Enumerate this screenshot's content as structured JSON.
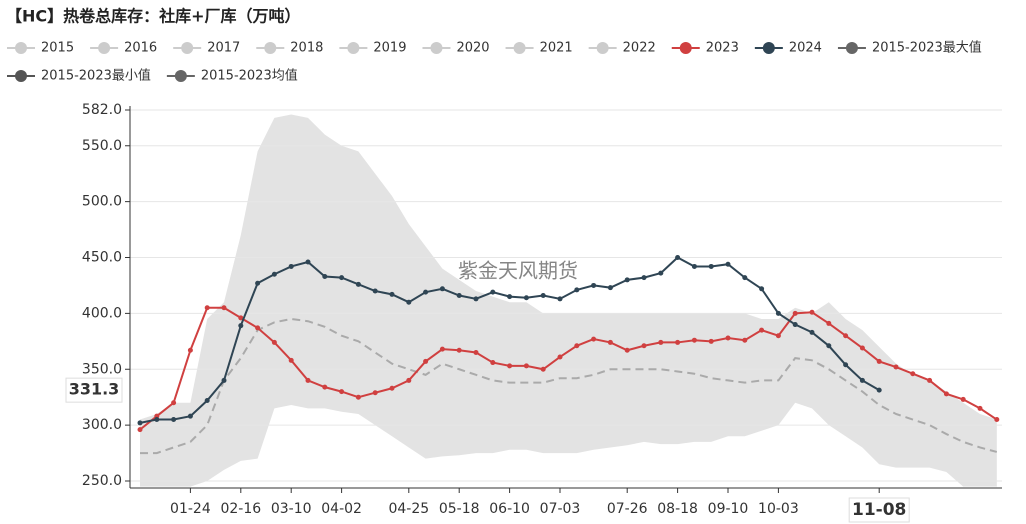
{
  "chart_data": {
    "type": "line",
    "title": "【HC】热卷总库存：社库+厂库（万吨）",
    "watermark": "紫金天风期货",
    "hidden_series": [
      "2015",
      "2016",
      "2017",
      "2018",
      "2019",
      "2020",
      "2021",
      "2022"
    ],
    "hidden_color": "#cccccc",
    "categories": [
      null,
      null,
      null,
      "01-24",
      null,
      null,
      "02-16",
      null,
      null,
      "03-10",
      null,
      null,
      "04-02",
      null,
      null,
      null,
      "04-25",
      null,
      null,
      "05-18",
      null,
      null,
      "06-10",
      null,
      null,
      "07-03",
      null,
      null,
      null,
      "07-26",
      null,
      null,
      "08-18",
      null,
      null,
      "09-10",
      null,
      null,
      "10-03",
      null,
      null,
      null,
      null,
      null,
      "11-08",
      null,
      null,
      null,
      null,
      null,
      null,
      null
    ],
    "series": [
      {
        "name": "2023",
        "color": "#d04040",
        "kind": "line",
        "values": [
          296,
          308,
          320,
          367,
          405,
          405,
          396,
          387,
          374,
          358,
          340,
          334,
          330,
          325,
          329,
          333,
          340,
          357,
          368,
          367,
          365,
          356,
          353,
          353,
          350,
          361,
          371,
          377,
          374,
          367,
          371,
          374,
          374,
          376,
          375,
          378,
          376,
          385,
          380,
          400,
          401,
          391,
          380,
          369,
          357,
          352,
          346,
          340,
          328,
          323,
          315,
          305
        ]
      },
      {
        "name": "2024",
        "color": "#2f4554",
        "kind": "line",
        "values": [
          302,
          305,
          305,
          308,
          322,
          340,
          389,
          427,
          435,
          442,
          446,
          433,
          432,
          426,
          420,
          417,
          410,
          419,
          422,
          416,
          413,
          419,
          415,
          414,
          416,
          413,
          421,
          425,
          423,
          430,
          432,
          436,
          450,
          442,
          442,
          444,
          432,
          422,
          400,
          390,
          383,
          371,
          354,
          340,
          331.3,
          null,
          null,
          null,
          null,
          null,
          null,
          null
        ]
      },
      {
        "name": "2015-2023最大值",
        "color": "#666666",
        "fill": "#e3e3e3",
        "kind": "band-top",
        "values": [
          305,
          310,
          320,
          320,
          395,
          410,
          470,
          545,
          575,
          578,
          575,
          560,
          550,
          545,
          525,
          505,
          480,
          460,
          440,
          430,
          420,
          415,
          410,
          410,
          400,
          400,
          400,
          400,
          400,
          400,
          400,
          400,
          400,
          400,
          400,
          400,
          400,
          395,
          395,
          405,
          400,
          410,
          395,
          385,
          370,
          355,
          345,
          340,
          330,
          320,
          310,
          305
        ]
      },
      {
        "name": "2015-2023最小值",
        "color": "#555555",
        "fill": "#ffffff",
        "kind": "band-bottom",
        "values": [
          245,
          245,
          245,
          245,
          250,
          260,
          268,
          270,
          315,
          318,
          315,
          315,
          312,
          310,
          300,
          290,
          280,
          270,
          272,
          273,
          275,
          275,
          278,
          278,
          275,
          275,
          275,
          278,
          280,
          282,
          285,
          283,
          283,
          285,
          285,
          290,
          290,
          295,
          300,
          320,
          315,
          300,
          290,
          280,
          265,
          262,
          262,
          262,
          258,
          245,
          245,
          245
        ]
      },
      {
        "name": "2015-2023均值",
        "color": "#666666",
        "line_color": "#aaaaaa",
        "kind": "dashed",
        "values": [
          275,
          275,
          280,
          285,
          300,
          340,
          360,
          385,
          392,
          395,
          393,
          388,
          380,
          375,
          365,
          355,
          350,
          345,
          355,
          350,
          345,
          340,
          338,
          338,
          338,
          342,
          342,
          345,
          350,
          350,
          350,
          350,
          348,
          346,
          342,
          340,
          338,
          340,
          340,
          360,
          358,
          350,
          340,
          330,
          318,
          310,
          305,
          300,
          292,
          285,
          280,
          276
        ]
      }
    ],
    "ylim": [
      250,
      582
    ],
    "yticks": [
      {
        "value": 250,
        "label": "250.0"
      },
      {
        "value": 300,
        "label": "300.0"
      },
      {
        "value": 350,
        "label": "350.0"
      },
      {
        "value": 400,
        "label": "400.0"
      },
      {
        "value": 450,
        "label": "450.0"
      },
      {
        "value": 500,
        "label": "500.0"
      },
      {
        "value": 550,
        "label": "550.0"
      },
      {
        "value": 582,
        "label": "582.0"
      }
    ],
    "grid": true,
    "axis_pointer": {
      "x": 44,
      "y": 331.3
    }
  }
}
